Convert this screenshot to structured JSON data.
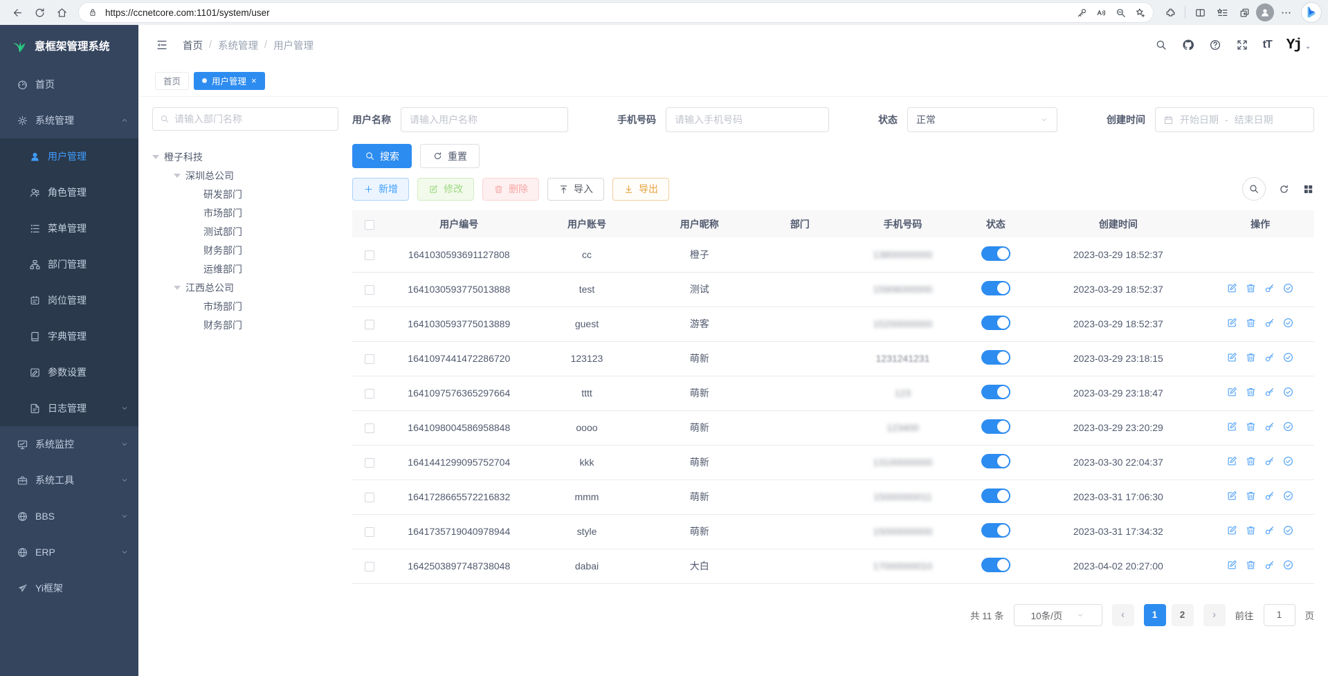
{
  "colors": {
    "accent": "#409eff",
    "accent_secondary": "#2d8cf0",
    "sidebar_bg": "#35455e",
    "sidebar_submenu_bg": "#2a394c",
    "success": "#67c23a",
    "danger": "#f56c6c",
    "warning": "#e6a23c",
    "toggle_on": "#2d8cf0"
  },
  "browser": {
    "url": "https://ccnetcore.com:1101/system/user"
  },
  "app": {
    "logo_title": "意框架管理系统",
    "user_logo": "Yj",
    "font_size_tool": "tT"
  },
  "breadcrumb": [
    {
      "label": "首页"
    },
    {
      "label": "系统管理"
    },
    {
      "label": "用户管理"
    }
  ],
  "tabs": [
    {
      "name": "home",
      "label": "首页",
      "active": false,
      "closable": false
    },
    {
      "name": "user-management",
      "label": "用户管理",
      "active": true,
      "closable": true
    }
  ],
  "sidebar_menu": [
    {
      "name": "home",
      "label": "首页",
      "icon": "dashboard"
    },
    {
      "name": "system",
      "label": "系统管理",
      "icon": "gear",
      "expanded": true,
      "children": [
        {
          "name": "user-management",
          "label": "用户管理",
          "icon": "user",
          "active": true
        },
        {
          "name": "role-management",
          "label": "角色管理",
          "icon": "roles"
        },
        {
          "name": "menu-management",
          "label": "菜单管理",
          "icon": "menu-list"
        },
        {
          "name": "dept-management",
          "label": "部门管理",
          "icon": "org"
        },
        {
          "name": "post-management",
          "label": "岗位管理",
          "icon": "post"
        },
        {
          "name": "dict-management",
          "label": "字典管理",
          "icon": "dict"
        },
        {
          "name": "param-settings",
          "label": "参数设置",
          "icon": "params"
        },
        {
          "name": "log-management",
          "label": "日志管理",
          "icon": "logs",
          "arrow": "down"
        }
      ]
    },
    {
      "name": "system-monitor",
      "label": "系统监控",
      "icon": "monitor",
      "arrow": "down"
    },
    {
      "name": "system-tools",
      "label": "系统工具",
      "icon": "tools",
      "arrow": "down"
    },
    {
      "name": "bbs",
      "label": "BBS",
      "icon": "globe",
      "arrow": "down"
    },
    {
      "name": "erp",
      "label": "ERP",
      "icon": "globe",
      "arrow": "down"
    },
    {
      "name": "yi-framework",
      "label": "Yi框架",
      "icon": "plane"
    }
  ],
  "dept_tree": {
    "search_placeholder": "请输入部门名称",
    "nodes": [
      {
        "label": "橙子科技",
        "level": 0,
        "expanded": true
      },
      {
        "label": "深圳总公司",
        "level": 1,
        "expanded": true
      },
      {
        "label": "研发部门",
        "level": 2
      },
      {
        "label": "市场部门",
        "level": 2
      },
      {
        "label": "测试部门",
        "level": 2
      },
      {
        "label": "财务部门",
        "level": 2
      },
      {
        "label": "运维部门",
        "level": 2
      },
      {
        "label": "江西总公司",
        "level": 1,
        "expanded": true
      },
      {
        "label": "市场部门",
        "level": 2
      },
      {
        "label": "财务部门",
        "level": 2
      }
    ]
  },
  "filters": {
    "username_label": "用户名称",
    "username_placeholder": "请输入用户名称",
    "phone_label": "手机号码",
    "phone_placeholder": "请输入手机号码",
    "status_label": "状态",
    "status_value": "正常",
    "created_label": "创建时间",
    "date_start_placeholder": "开始日期",
    "date_separator": "-",
    "date_end_placeholder": "结束日期",
    "search_label": "搜索",
    "reset_label": "重置"
  },
  "toolbar": {
    "add_label": "新增",
    "modify_label": "修改",
    "delete_label": "删除",
    "import_label": "导入",
    "export_label": "导出"
  },
  "table": {
    "headers": [
      "用户编号",
      "用户账号",
      "用户昵称",
      "部门",
      "手机号码",
      "状态",
      "创建时间",
      "操作"
    ],
    "rows": [
      {
        "id": "1641030593691127808",
        "account": "cc",
        "nickname": "橙子",
        "dept": "",
        "phone": "13800000000",
        "phone_redacted": "heavy",
        "status_on": true,
        "created": "2023-03-29 18:52:37",
        "has_actions": false
      },
      {
        "id": "1641030593775013888",
        "account": "test",
        "nickname": "测试",
        "dept": "",
        "phone": "15906000000",
        "phone_redacted": "heavy",
        "status_on": true,
        "created": "2023-03-29 18:52:37",
        "has_actions": true
      },
      {
        "id": "1641030593775013889",
        "account": "guest",
        "nickname": "游客",
        "dept": "",
        "phone": "15200000000",
        "phone_redacted": "heavy",
        "status_on": true,
        "created": "2023-03-29 18:52:37",
        "has_actions": true
      },
      {
        "id": "1641097441472286720",
        "account": "123123",
        "nickname": "萌新",
        "dept": "",
        "phone": "1231241231",
        "phone_redacted": "light",
        "status_on": true,
        "created": "2023-03-29 23:18:15",
        "has_actions": true
      },
      {
        "id": "1641097576365297664",
        "account": "tttt",
        "nickname": "萌新",
        "dept": "",
        "phone": "123",
        "phone_redacted": "heavy",
        "status_on": true,
        "created": "2023-03-29 23:18:47",
        "has_actions": true
      },
      {
        "id": "1641098004586958848",
        "account": "oooo",
        "nickname": "萌新",
        "dept": "",
        "phone": "123400",
        "phone_redacted": "heavy",
        "status_on": true,
        "created": "2023-03-29 23:20:29",
        "has_actions": true
      },
      {
        "id": "1641441299095752704",
        "account": "kkk",
        "nickname": "萌新",
        "dept": "",
        "phone": "13100000000",
        "phone_redacted": "heavy",
        "status_on": true,
        "created": "2023-03-30 22:04:37",
        "has_actions": true
      },
      {
        "id": "1641728665572216832",
        "account": "mmm",
        "nickname": "萌新",
        "dept": "",
        "phone": "15000000011",
        "phone_redacted": "heavy",
        "status_on": true,
        "created": "2023-03-31 17:06:30",
        "has_actions": true
      },
      {
        "id": "1641735719040978944",
        "account": "style",
        "nickname": "萌新",
        "dept": "",
        "phone": "15000000000",
        "phone_redacted": "heavy",
        "status_on": true,
        "created": "2023-03-31 17:34:32",
        "has_actions": true
      },
      {
        "id": "1642503897748738048",
        "account": "dabai",
        "nickname": "大白",
        "dept": "",
        "phone": "17000000010",
        "phone_redacted": "heavy",
        "status_on": true,
        "created": "2023-04-02 20:27:00",
        "has_actions": true
      }
    ],
    "action_icons": [
      {
        "name": "edit",
        "icon": "edit"
      },
      {
        "name": "delete",
        "icon": "trash"
      },
      {
        "name": "reset-password",
        "icon": "key2"
      },
      {
        "name": "assign-role",
        "icon": "check-circle"
      }
    ]
  },
  "pagination": {
    "total_label": "共 11 条",
    "page_size_label": "10条/页",
    "pages": [
      "1",
      "2"
    ],
    "active_page": "1",
    "prev": "‹",
    "next": "›",
    "goto_label": "前往",
    "goto_value": "1",
    "unit_label": "页"
  }
}
